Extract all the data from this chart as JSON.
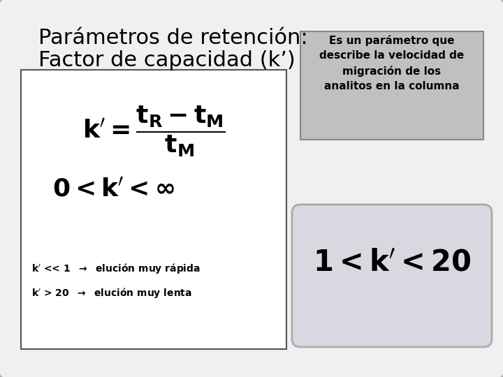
{
  "title_line1": "Parámetros de retención:",
  "title_line2": "Factor de capacidad (k’)",
  "bg_color": "#f0f0f0",
  "outer_edge": "#888888",
  "left_box_color": "#ffffff",
  "left_box_edge": "#555555",
  "right_top_box_color": "#c0c0c8",
  "right_top_box_edge": "#888888",
  "right_bottom_box_color": "#d0d0d8",
  "right_bottom_box_edge": "#aaaaaa",
  "text_line1": "Es un parámetro que",
  "text_line2": "describe la velocidad de",
  "text_line3": "migración de los",
  "text_line4": "analitos en la columna",
  "bullet1": "k′ << 1  →  elución muy rápida",
  "bullet2": "k′ > 20  →  elución muy lenta"
}
